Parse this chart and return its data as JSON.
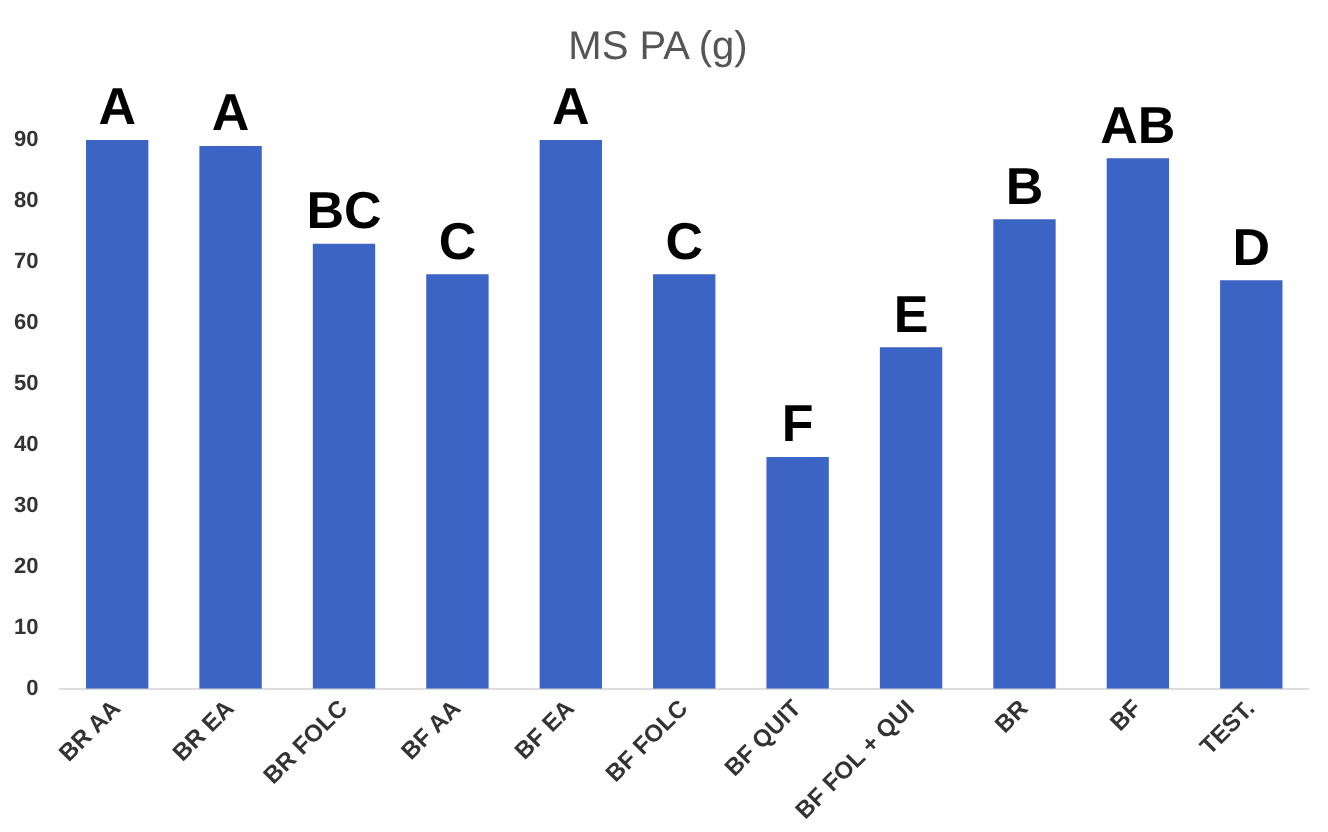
{
  "chart_data": {
    "type": "bar",
    "title": "MS PA (g)",
    "categories": [
      "BR AA",
      "BR EA",
      "BR FOLC",
      "BF AA",
      "BF EA",
      "BF FOLC",
      "BF QUIT",
      "BF FOL + QUI",
      "BR",
      "BF",
      "TEST."
    ],
    "values": [
      90,
      89,
      73,
      68,
      90,
      68,
      38,
      56,
      77,
      87,
      67
    ],
    "value_labels": [
      "A",
      "A",
      "BC",
      "C",
      "A",
      "C",
      "F",
      "E",
      "B",
      "AB",
      "D"
    ],
    "color": "#3b64c4",
    "ylim": [
      0,
      90
    ],
    "yticks": [
      0,
      10,
      20,
      30,
      40,
      50,
      60,
      70,
      80,
      90
    ],
    "grid": false,
    "legend": false
  }
}
